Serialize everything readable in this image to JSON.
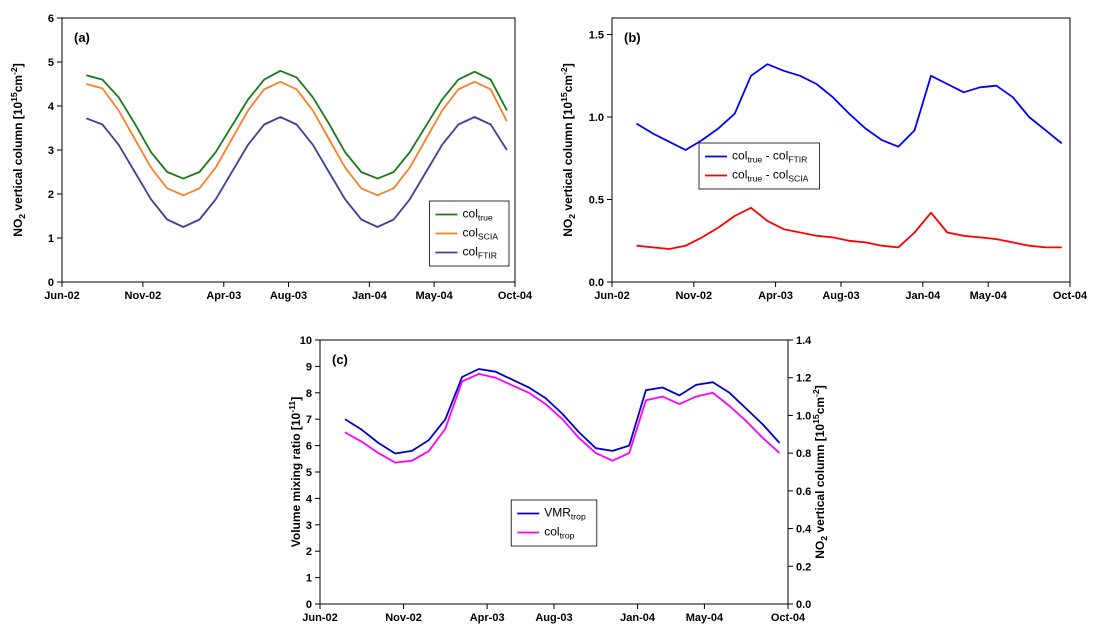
{
  "chart_data": [
    {
      "type": "line",
      "label": "(a)",
      "ylabel": "NO_{2} vertical column [10^{15}cm^{-2}]",
      "xlim": [
        "2002-06",
        "2004-10"
      ],
      "xticks": [
        {
          "value": "2002-06",
          "label": "Jun-02"
        },
        {
          "value": "2002-11",
          "label": "Nov-02"
        },
        {
          "value": "2003-04",
          "label": "Apr-03"
        },
        {
          "value": "2003-08",
          "label": "Aug-03"
        },
        {
          "value": "2004-01",
          "label": "Jan-04"
        },
        {
          "value": "2004-05",
          "label": "May-04"
        },
        {
          "value": "2004-10",
          "label": "Oct-04"
        }
      ],
      "ylim": [
        0,
        6
      ],
      "yticks": [
        0,
        1,
        2,
        3,
        4,
        5,
        6
      ],
      "legend": "lower right",
      "x": [
        "2002-07",
        "2002-08",
        "2002-09",
        "2002-10",
        "2002-11",
        "2002-12",
        "2003-01",
        "2003-02",
        "2003-03",
        "2003-04",
        "2003-05",
        "2003-06",
        "2003-07",
        "2003-08",
        "2003-09",
        "2003-10",
        "2003-11",
        "2003-12",
        "2004-01",
        "2004-02",
        "2004-03",
        "2004-04",
        "2004-05",
        "2004-06",
        "2004-07",
        "2004-08",
        "2004-09"
      ],
      "series": [
        {
          "name": "col_{true}",
          "color": "#1a7a1a",
          "values": [
            4.7,
            4.6,
            4.2,
            3.6,
            2.95,
            2.5,
            2.35,
            2.5,
            2.95,
            3.55,
            4.15,
            4.6,
            4.8,
            4.65,
            4.2,
            3.6,
            2.95,
            2.5,
            2.35,
            2.5,
            2.95,
            3.55,
            4.15,
            4.6,
            4.78,
            4.6,
            3.9
          ]
        },
        {
          "name": "col_{SCIA}",
          "color": "#ff7f27",
          "values": [
            4.5,
            4.4,
            3.9,
            3.25,
            2.6,
            2.13,
            1.97,
            2.13,
            2.6,
            3.25,
            3.9,
            4.38,
            4.55,
            4.38,
            3.9,
            3.25,
            2.6,
            2.13,
            1.97,
            2.13,
            2.6,
            3.25,
            3.9,
            4.38,
            4.55,
            4.38,
            3.65
          ]
        },
        {
          "name": "col_{FTIR}",
          "color": "#3f3f99",
          "values": [
            3.72,
            3.58,
            3.12,
            2.5,
            1.88,
            1.42,
            1.25,
            1.42,
            1.88,
            2.5,
            3.12,
            3.58,
            3.75,
            3.58,
            3.12,
            2.5,
            1.88,
            1.42,
            1.25,
            1.42,
            1.88,
            2.5,
            3.12,
            3.58,
            3.75,
            3.58,
            3.0
          ]
        }
      ]
    },
    {
      "type": "line",
      "label": "(b)",
      "ylabel": "NO_{2} vertical column [10^{15}cm^{-2}]",
      "xlim": [
        "2002-06",
        "2004-10"
      ],
      "xticks": [
        {
          "value": "2002-06",
          "label": "Jun-02"
        },
        {
          "value": "2002-11",
          "label": "Nov-02"
        },
        {
          "value": "2003-04",
          "label": "Apr-03"
        },
        {
          "value": "2003-08",
          "label": "Aug-03"
        },
        {
          "value": "2004-01",
          "label": "Jan-04"
        },
        {
          "value": "2004-05",
          "label": "May-04"
        },
        {
          "value": "2004-10",
          "label": "Oct-04"
        }
      ],
      "ylim": [
        0,
        1.6
      ],
      "yticks": [
        {
          "value": 0,
          "label": "0.0"
        },
        0.5,
        {
          "value": 1,
          "label": "1.0"
        },
        1.5
      ],
      "legend": "center left",
      "x": [
        "2002-07",
        "2002-08",
        "2002-09",
        "2002-10",
        "2002-11",
        "2002-12",
        "2003-01",
        "2003-02",
        "2003-03",
        "2003-04",
        "2003-05",
        "2003-06",
        "2003-07",
        "2003-08",
        "2003-09",
        "2003-10",
        "2003-11",
        "2003-12",
        "2004-01",
        "2004-02",
        "2004-03",
        "2004-04",
        "2004-05",
        "2004-06",
        "2004-07",
        "2004-08",
        "2004-09"
      ],
      "series": [
        {
          "name": "col_{true} - col_{FTIR}",
          "color": "#0000ff",
          "values": [
            0.96,
            0.9,
            0.85,
            0.8,
            0.86,
            0.93,
            1.02,
            1.25,
            1.32,
            1.28,
            1.25,
            1.2,
            1.12,
            1.02,
            0.93,
            0.86,
            0.82,
            0.92,
            1.25,
            1.2,
            1.15,
            1.18,
            1.19,
            1.12,
            1.0,
            0.92,
            0.84
          ]
        },
        {
          "name": "col_{true} - col_{SCIA}",
          "color": "#ff0000",
          "values": [
            0.22,
            0.21,
            0.2,
            0.22,
            0.27,
            0.33,
            0.4,
            0.45,
            0.37,
            0.32,
            0.3,
            0.28,
            0.27,
            0.25,
            0.24,
            0.22,
            0.21,
            0.3,
            0.42,
            0.3,
            0.28,
            0.27,
            0.26,
            0.24,
            0.22,
            0.21,
            0.21
          ]
        }
      ]
    },
    {
      "type": "line",
      "label": "(c)",
      "ylabel": "Volume mixing ratio [10^{-11}]",
      "ylabel_color": "#0000cc",
      "y2label": "NO_{2} vertical column [10^{15}cm^{-2}]",
      "y2label_color": "#ff00ff",
      "xlim": [
        "2002-06",
        "2004-10"
      ],
      "xticks": [
        {
          "value": "2002-06",
          "label": "Jun-02"
        },
        {
          "value": "2002-11",
          "label": "Nov-02"
        },
        {
          "value": "2003-04",
          "label": "Apr-03"
        },
        {
          "value": "2003-08",
          "label": "Aug-03"
        },
        {
          "value": "2004-01",
          "label": "Jan-04"
        },
        {
          "value": "2004-05",
          "label": "May-04"
        },
        {
          "value": "2004-10",
          "label": "Oct-04"
        }
      ],
      "ylim": [
        0,
        10
      ],
      "yticks": [
        0,
        1,
        2,
        3,
        4,
        5,
        6,
        7,
        8,
        9,
        10
      ],
      "y2lim": [
        0,
        1.4
      ],
      "y2ticks": [
        {
          "value": 0,
          "label": "0.0"
        },
        0.2,
        0.4,
        0.6,
        0.8,
        {
          "value": 1,
          "label": "1.0"
        },
        1.2,
        1.4
      ],
      "legend": "lower center",
      "x": [
        "2002-07",
        "2002-08",
        "2002-09",
        "2002-10",
        "2002-11",
        "2002-12",
        "2003-01",
        "2003-02",
        "2003-03",
        "2003-04",
        "2003-05",
        "2003-06",
        "2003-07",
        "2003-08",
        "2003-09",
        "2003-10",
        "2003-11",
        "2003-12",
        "2004-01",
        "2004-02",
        "2004-03",
        "2004-04",
        "2004-05",
        "2004-06",
        "2004-07",
        "2004-08",
        "2004-09"
      ],
      "series": [
        {
          "name": "VMR_{trop}",
          "color": "#0000cc",
          "values": [
            7.0,
            6.6,
            6.1,
            5.7,
            5.8,
            6.2,
            7.0,
            8.6,
            8.9,
            8.8,
            8.5,
            8.2,
            7.8,
            7.2,
            6.5,
            5.9,
            5.8,
            6.0,
            8.1,
            8.2,
            7.9,
            8.3,
            8.4,
            8.0,
            7.4,
            6.8,
            6.1
          ]
        },
        {
          "name": "col_{trop}",
          "color": "#ff00ff",
          "axis": "y2",
          "values": [
            0.91,
            0.86,
            0.8,
            0.75,
            0.76,
            0.81,
            0.93,
            1.18,
            1.22,
            1.2,
            1.16,
            1.12,
            1.06,
            0.98,
            0.88,
            0.8,
            0.76,
            0.8,
            1.08,
            1.1,
            1.06,
            1.1,
            1.12,
            1.05,
            0.97,
            0.88,
            0.8
          ]
        }
      ]
    }
  ]
}
